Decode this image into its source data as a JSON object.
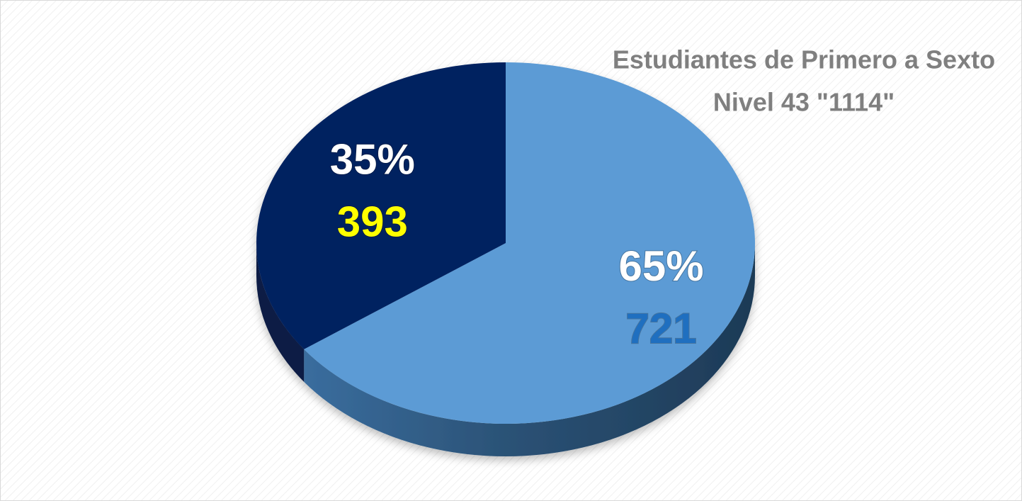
{
  "chart_data": {
    "type": "pie",
    "title": [
      "Estudiantes de Primero a Sexto",
      "Nivel 43 \"1114\""
    ],
    "values": [
      65,
      35
    ],
    "value_labels": [
      "65%",
      "35%"
    ],
    "counts": [
      721,
      393
    ],
    "colors": [
      "#5b9bd5",
      "#002060"
    ],
    "count_label_colors": [
      "#1f6fc0",
      "#ffff00"
    ]
  }
}
